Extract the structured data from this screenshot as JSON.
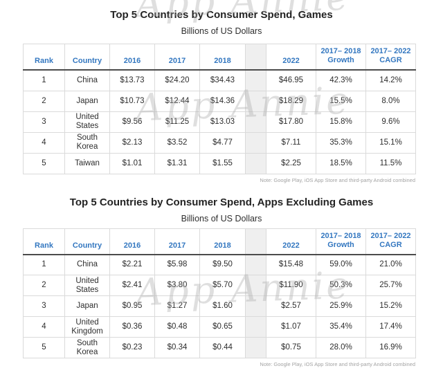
{
  "watermark": {
    "text": "App Annie"
  },
  "colors": {
    "header_blue": "#3377c0",
    "header_underline": "#4b4b4b",
    "table_border": "#dadada",
    "gap_fill": "#efefef",
    "note_gray": "#a3a3a3"
  },
  "columns": {
    "rank": "Rank",
    "country": "Country",
    "y2016": "2016",
    "y2017": "2017",
    "y2018": "2018",
    "y2022": "2022",
    "growth_line1": "2017– 2018",
    "growth_line2": "Growth",
    "cagr_line1": "2017– 2022",
    "cagr_line2": "CAGR"
  },
  "tables": [
    {
      "title": "Top 5 Countries by Consumer Spend, Games",
      "subtitle": "Billions of US Dollars",
      "note": "Note: Google Play, iOS App Store and third-party Android combined",
      "rows": [
        {
          "rank": "1",
          "country": "China",
          "y2016": "$13.73",
          "y2017": "$24.20",
          "y2018": "$34.43",
          "y2022": "$46.95",
          "growth": "42.3%",
          "cagr": "14.2%"
        },
        {
          "rank": "2",
          "country": "Japan",
          "y2016": "$10.73",
          "y2017": "$12.44",
          "y2018": "$14.36",
          "y2022": "$18.29",
          "growth": "15.5%",
          "cagr": "8.0%"
        },
        {
          "rank": "3",
          "country": "United\nStates",
          "y2016": "$9.56",
          "y2017": "$11.25",
          "y2018": "$13.03",
          "y2022": "$17.80",
          "growth": "15.8%",
          "cagr": "9.6%"
        },
        {
          "rank": "4",
          "country": "South Korea",
          "y2016": "$2.13",
          "y2017": "$3.52",
          "y2018": "$4.77",
          "y2022": "$7.11",
          "growth": "35.3%",
          "cagr": "15.1%"
        },
        {
          "rank": "5",
          "country": "Taiwan",
          "y2016": "$1.01",
          "y2017": "$1.31",
          "y2018": "$1.55",
          "y2022": "$2.25",
          "growth": "18.5%",
          "cagr": "11.5%"
        }
      ]
    },
    {
      "title": "Top 5 Countries by Consumer Spend, Apps Excluding Games",
      "subtitle": "Billions of US Dollars",
      "note": "Note: Google Play, iOS App Store and third-party Android combined",
      "rows": [
        {
          "rank": "1",
          "country": "China",
          "y2016": "$2.21",
          "y2017": "$5.98",
          "y2018": "$9.50",
          "y2022": "$15.48",
          "growth": "59.0%",
          "cagr": "21.0%"
        },
        {
          "rank": "2",
          "country": "United\nStates",
          "y2016": "$2.41",
          "y2017": "$3.80",
          "y2018": "$5.70",
          "y2022": "$11.90",
          "growth": "50.3%",
          "cagr": "25.7%"
        },
        {
          "rank": "3",
          "country": "Japan",
          "y2016": "$0.95",
          "y2017": "$1.27",
          "y2018": "$1.60",
          "y2022": "$2.57",
          "growth": "25.9%",
          "cagr": "15.2%"
        },
        {
          "rank": "4",
          "country": "United\nKingdom",
          "y2016": "$0.36",
          "y2017": "$0.48",
          "y2018": "$0.65",
          "y2022": "$1.07",
          "growth": "35.4%",
          "cagr": "17.4%"
        },
        {
          "rank": "5",
          "country": "South Korea",
          "y2016": "$0.23",
          "y2017": "$0.34",
          "y2018": "$0.44",
          "y2022": "$0.75",
          "growth": "28.0%",
          "cagr": "16.9%"
        }
      ]
    }
  ],
  "chart_data": [
    {
      "type": "table",
      "title": "Top 5 Countries by Consumer Spend, Games",
      "subtitle": "Billions of US Dollars",
      "unit": "Billions of US Dollars",
      "columns": [
        "Rank",
        "Country",
        "2016",
        "2017",
        "2018",
        "2022",
        "2017– 2018 Growth",
        "2017– 2022 CAGR"
      ],
      "rows": [
        [
          1,
          "China",
          13.73,
          24.2,
          34.43,
          46.95,
          "42.3%",
          "14.2%"
        ],
        [
          2,
          "Japan",
          10.73,
          12.44,
          14.36,
          18.29,
          "15.5%",
          "8.0%"
        ],
        [
          3,
          "United States",
          9.56,
          11.25,
          13.03,
          17.8,
          "15.8%",
          "9.6%"
        ],
        [
          4,
          "South Korea",
          2.13,
          3.52,
          4.77,
          7.11,
          "35.3%",
          "15.1%"
        ],
        [
          5,
          "Taiwan",
          1.01,
          1.31,
          1.55,
          2.25,
          "18.5%",
          "11.5%"
        ]
      ],
      "note": "Note: Google Play, iOS App Store and third-party Android combined"
    },
    {
      "type": "table",
      "title": "Top 5 Countries by Consumer Spend, Apps Excluding Games",
      "subtitle": "Billions of US Dollars",
      "unit": "Billions of US Dollars",
      "columns": [
        "Rank",
        "Country",
        "2016",
        "2017",
        "2018",
        "2022",
        "2017– 2018 Growth",
        "2017– 2022 CAGR"
      ],
      "rows": [
        [
          1,
          "China",
          2.21,
          5.98,
          9.5,
          15.48,
          "59.0%",
          "21.0%"
        ],
        [
          2,
          "United States",
          2.41,
          3.8,
          5.7,
          11.9,
          "50.3%",
          "25.7%"
        ],
        [
          3,
          "Japan",
          0.95,
          1.27,
          1.6,
          2.57,
          "25.9%",
          "15.2%"
        ],
        [
          4,
          "United Kingdom",
          0.36,
          0.48,
          0.65,
          1.07,
          "35.4%",
          "17.4%"
        ],
        [
          5,
          "South Korea",
          0.23,
          0.34,
          0.44,
          0.75,
          "28.0%",
          "16.9%"
        ]
      ],
      "note": "Note: Google Play, iOS App Store and third-party Android combined"
    }
  ]
}
